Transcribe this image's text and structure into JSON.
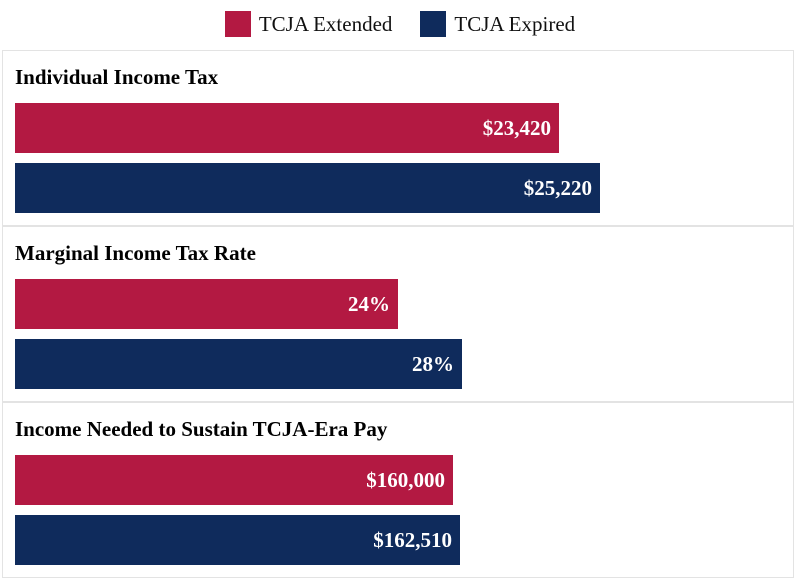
{
  "colors": {
    "extended": "#b31942",
    "expired": "#0f2b5c"
  },
  "legend": [
    {
      "name": "TCJA Extended",
      "color": "#b31942"
    },
    {
      "name": "TCJA Expired",
      "color": "#0f2b5c"
    }
  ],
  "chart_data": [
    {
      "type": "bar",
      "orientation": "horizontal",
      "title": "Individual Income Tax",
      "categories": [
        "TCJA Extended",
        "TCJA Expired"
      ],
      "values": [
        23420,
        25220
      ],
      "labels": [
        "$23,420",
        "$25,220"
      ],
      "xlim": [
        0,
        33000
      ]
    },
    {
      "type": "bar",
      "orientation": "horizontal",
      "title": "Marginal Income Tax Rate",
      "categories": [
        "TCJA Extended",
        "TCJA Expired"
      ],
      "values": [
        24,
        28
      ],
      "labels": [
        "24%",
        "28%"
      ],
      "xlim": [
        0,
        48
      ]
    },
    {
      "type": "bar",
      "orientation": "horizontal",
      "title": "Income Needed to Sustain TCJA-Era Pay",
      "categories": [
        "TCJA Extended",
        "TCJA Expired"
      ],
      "values": [
        160000,
        162510
      ],
      "labels": [
        "$160,000",
        "$162,510"
      ],
      "xlim": [
        0,
        280000
      ]
    }
  ]
}
